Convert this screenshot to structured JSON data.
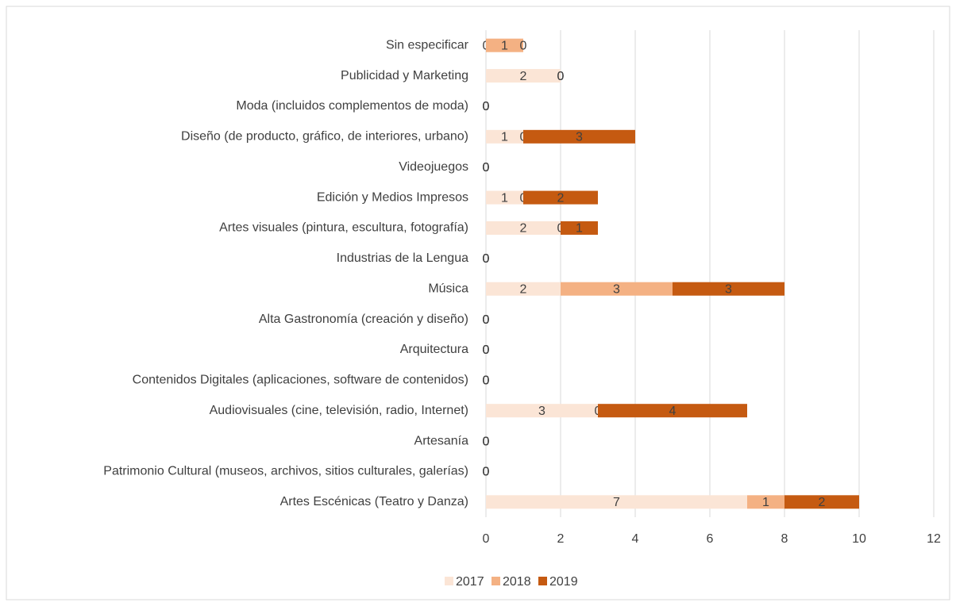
{
  "chart_data": {
    "type": "stacked_bar_horizontal",
    "categories": [
      "Sin especificar",
      "Publicidad y Marketing",
      "Moda (incluidos complementos de moda)",
      "Diseño (de producto, gráfico, de interiores, urbano)",
      "Videojuegos",
      "Edición y Medios Impresos",
      "Artes visuales (pintura, escultura, fotografía)",
      "Industrias de la Lengua",
      "Música",
      "Alta Gastronomía (creación y diseño)",
      "Arquitectura",
      "Contenidos Digitales (aplicaciones, software de contenidos)",
      "Audiovisuales (cine, televisión, radio, Internet)",
      "Artesanía",
      "Patrimonio Cultural (museos, archivos, sitios culturales, galerías)",
      "Artes Escénicas (Teatro y Danza)"
    ],
    "series": [
      {
        "name": "2017",
        "color": "#fbe5d6",
        "values": [
          0,
          2,
          0,
          1,
          0,
          1,
          2,
          0,
          2,
          0,
          0,
          0,
          3,
          0,
          0,
          7
        ]
      },
      {
        "name": "2018",
        "color": "#f4b183",
        "values": [
          1,
          0,
          0,
          0,
          0,
          0,
          0,
          0,
          3,
          0,
          0,
          0,
          0,
          0,
          0,
          1
        ]
      },
      {
        "name": "2019",
        "color": "#c55a11",
        "values": [
          0,
          0,
          0,
          3,
          0,
          2,
          1,
          0,
          3,
          0,
          0,
          0,
          4,
          0,
          0,
          2
        ]
      }
    ],
    "xlim": [
      0,
      12
    ],
    "xticks": [
      0,
      2,
      4,
      6,
      8,
      10,
      12
    ],
    "grid": true,
    "legend": "bottom"
  }
}
